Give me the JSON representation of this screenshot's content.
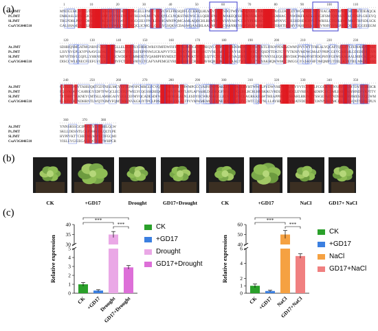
{
  "panels": {
    "a": "(a)",
    "b": "(b)",
    "c": "(c)"
  },
  "alignment": {
    "seq_names": [
      "At.JMT",
      "Pt.JMT",
      "Sl.JMT",
      "CsaV3G046510"
    ],
    "block1_ticks": [
      "1",
      "10",
      "20",
      "30",
      "40",
      "50",
      "60",
      "70",
      "80",
      "90",
      "100",
      "110"
    ],
    "block2_ticks": [
      "120",
      "130",
      "140",
      "150",
      "160",
      "170",
      "180",
      "190",
      "200",
      "210",
      "220",
      "230"
    ],
    "block3_ticks": [
      "240",
      "250",
      "260",
      "270",
      "280",
      "290",
      "300",
      "310",
      "320",
      "330",
      "340",
      "350"
    ],
    "block4_ticks": [
      "360",
      "370",
      "380"
    ]
  },
  "plants": [
    "CK",
    "+GD17",
    "Drought",
    "GD17+Drought",
    "CK",
    "+GD17",
    "NaCl",
    "GD17+ NaCl"
  ],
  "colors": {
    "ck": "#2aa02a",
    "gd17": "#3b7fe0",
    "drought": "#eaa8e6",
    "gd17_drought": "#dd6fd8",
    "nacl": "#f5a142",
    "gd17_nacl": "#f08080"
  },
  "chart_data": [
    {
      "type": "bar",
      "categories": [
        "CK",
        "+GD17",
        "Drought",
        "GD17+Drought"
      ],
      "values": [
        1.0,
        0.3,
        35,
        2.9
      ],
      "errors": [
        0.2,
        0.1,
        1.5,
        0.2
      ],
      "ylabel": "Relative expression",
      "ylim": [
        0,
        40
      ],
      "axis_break": [
        5,
        30
      ],
      "yticks": [
        "0",
        "1",
        "2",
        "3",
        "4",
        "5",
        "30",
        "35",
        "40"
      ],
      "legend": [
        "CK",
        "+GD17",
        "Drought",
        "GD17+Drought"
      ],
      "significance": [
        "***",
        "***",
        "***"
      ]
    },
    {
      "type": "bar",
      "categories": [
        "CK",
        "+GD17",
        "NaCl",
        "GD17+NaCl"
      ],
      "values": [
        1.0,
        0.3,
        50,
        5
      ],
      "errors": [
        0.25,
        0.1,
        4,
        0.3
      ],
      "ylabel": "Relative expression",
      "ylim": [
        0,
        60
      ],
      "axis_break": [
        6,
        40
      ],
      "yticks": [
        "0",
        "1",
        "2",
        "4",
        "6",
        "40",
        "50",
        "60"
      ],
      "legend": [
        "CK",
        "+GD17",
        "NaCl",
        "GD17+NaCl"
      ],
      "significance": [
        "***",
        "***",
        "***"
      ]
    }
  ]
}
